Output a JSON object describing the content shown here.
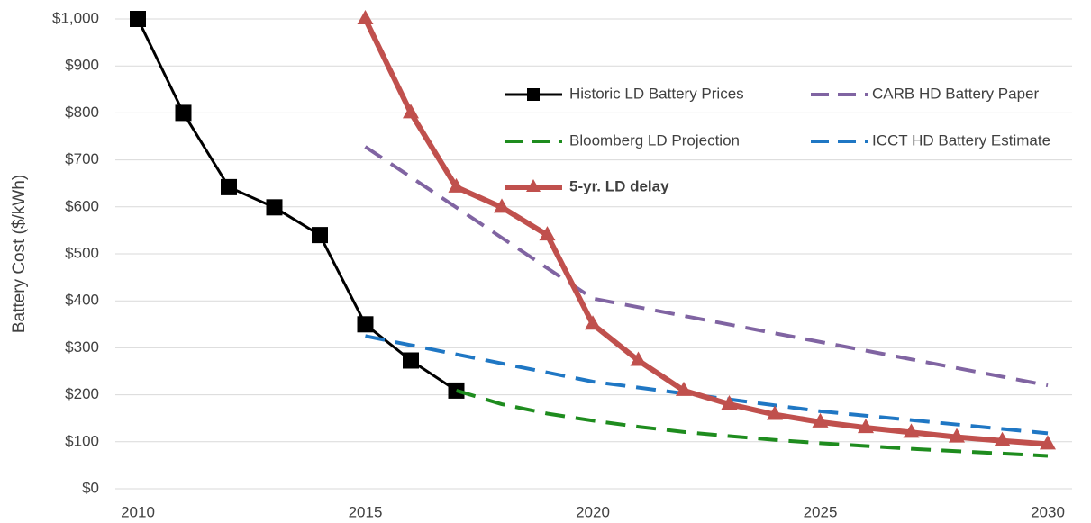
{
  "chart_data": {
    "type": "line",
    "y_label": "Battery Cost ($/kWh)",
    "xlim": [
      2010,
      2030
    ],
    "xticks": [
      2010,
      2015,
      2020,
      2025,
      2030
    ],
    "ylim": [
      0,
      1000
    ],
    "yticks": [
      {
        "value": 0,
        "label": "$0"
      },
      {
        "value": 100,
        "label": "$100"
      },
      {
        "value": 200,
        "label": "$200"
      },
      {
        "value": 300,
        "label": "$300"
      },
      {
        "value": 400,
        "label": "$400"
      },
      {
        "value": 500,
        "label": "$500"
      },
      {
        "value": 600,
        "label": "$600"
      },
      {
        "value": 700,
        "label": "$700"
      },
      {
        "value": 800,
        "label": "$800"
      },
      {
        "value": 900,
        "label": "$900"
      },
      {
        "value": 1000,
        "label": "$1,000"
      }
    ],
    "grid": true,
    "legend_position": "upper right",
    "series": [
      {
        "name": "Historic LD Battery Prices",
        "color": "#000000",
        "dash": "solid",
        "marker": "square",
        "width": 3,
        "x": [
          2010,
          2011,
          2012,
          2013,
          2014,
          2015,
          2016,
          2017
        ],
        "values": [
          1000,
          800,
          642,
          599,
          540,
          350,
          273,
          209
        ]
      },
      {
        "name": "CARB HD Battery Paper",
        "color": "#8064a2",
        "dash": "dashed",
        "marker": "none",
        "width": 4,
        "x": [
          2015,
          2020,
          2030
        ],
        "values": [
          728,
          405,
          220
        ]
      },
      {
        "name": "Bloomberg LD Projection",
        "color": "#1e8c1e",
        "dash": "dashed",
        "marker": "none",
        "width": 4,
        "x": [
          2017,
          2018,
          2019,
          2020,
          2021,
          2022,
          2023,
          2024,
          2025,
          2026,
          2027,
          2028,
          2029,
          2030
        ],
        "values": [
          209,
          180,
          160,
          145,
          132,
          121,
          112,
          104,
          97,
          91,
          85,
          80,
          75,
          70
        ]
      },
      {
        "name": "ICCT HD Battery Estimate",
        "color": "#1f77c4",
        "dash": "dashed",
        "marker": "none",
        "width": 4,
        "x": [
          2015,
          2020,
          2025,
          2030
        ],
        "values": [
          325,
          228,
          165,
          118
        ]
      },
      {
        "name": "5-yr. LD delay",
        "color": "#c0504d",
        "dash": "solid",
        "marker": "triangle",
        "width": 6,
        "font_weight": "bold",
        "x": [
          2015,
          2016,
          2017,
          2018,
          2019,
          2020,
          2021,
          2022,
          2023,
          2024,
          2025,
          2026,
          2027,
          2028,
          2029,
          2030
        ],
        "values": [
          1000,
          800,
          642,
          599,
          540,
          350,
          273,
          209,
          180,
          158,
          142,
          130,
          120,
          110,
          102,
          95
        ]
      }
    ]
  }
}
